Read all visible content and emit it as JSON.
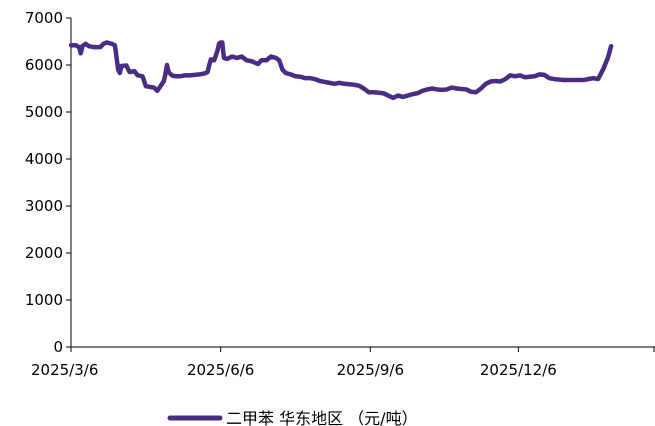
{
  "chart_data": {
    "type": "line",
    "title": "",
    "xlabel": "",
    "ylabel": "",
    "ylim": [
      0,
      7000
    ],
    "yticks": [
      0,
      1000,
      2000,
      3000,
      4000,
      5000,
      6000,
      7000
    ],
    "ytick_labels": [
      "0",
      "1000",
      "2000",
      "3000",
      "4000",
      "5000",
      "6000",
      "7000"
    ],
    "xlim": [
      "2025-03-06",
      "2026-02-28"
    ],
    "xticks": [
      "2025-03-06",
      "2025-06-06",
      "2025-09-06",
      "2025-12-06"
    ],
    "xtick_labels": [
      "2025/3/6",
      "2025/6/6",
      "2025/9/6",
      "2025/12/6"
    ],
    "grid": false,
    "legend_position": "bottom",
    "line_color": "#4b2c83",
    "series": [
      {
        "name": "二甲苯 华东地区 （元/吨）",
        "points": [
          [
            "2025-03-06",
            6420
          ],
          [
            "2025-03-09",
            6420
          ],
          [
            "2025-03-11",
            6380
          ],
          [
            "2025-03-12",
            6250
          ],
          [
            "2025-03-13",
            6400
          ],
          [
            "2025-03-15",
            6450
          ],
          [
            "2025-03-17",
            6400
          ],
          [
            "2025-03-20",
            6380
          ],
          [
            "2025-03-24",
            6380
          ],
          [
            "2025-03-26",
            6450
          ],
          [
            "2025-03-28",
            6480
          ],
          [
            "2025-03-31",
            6450
          ],
          [
            "2025-04-02",
            6420
          ],
          [
            "2025-04-04",
            5900
          ],
          [
            "2025-04-05",
            5830
          ],
          [
            "2025-04-06",
            5980
          ],
          [
            "2025-04-09",
            5990
          ],
          [
            "2025-04-11",
            5850
          ],
          [
            "2025-04-14",
            5870
          ],
          [
            "2025-04-16",
            5780
          ],
          [
            "2025-04-19",
            5760
          ],
          [
            "2025-04-21",
            5550
          ],
          [
            "2025-04-24",
            5530
          ],
          [
            "2025-04-26",
            5520
          ],
          [
            "2025-04-28",
            5450
          ],
          [
            "2025-04-30",
            5550
          ],
          [
            "2025-05-02",
            5650
          ],
          [
            "2025-05-03",
            5800
          ],
          [
            "2025-05-04",
            6000
          ],
          [
            "2025-05-05",
            5850
          ],
          [
            "2025-05-07",
            5780
          ],
          [
            "2025-05-09",
            5760
          ],
          [
            "2025-05-12",
            5760
          ],
          [
            "2025-05-15",
            5780
          ],
          [
            "2025-05-18",
            5780
          ],
          [
            "2025-05-21",
            5790
          ],
          [
            "2025-05-24",
            5800
          ],
          [
            "2025-05-27",
            5820
          ],
          [
            "2025-05-29",
            5850
          ],
          [
            "2025-05-30",
            6000
          ],
          [
            "2025-05-31",
            6120
          ],
          [
            "2025-06-02",
            6100
          ],
          [
            "2025-06-03",
            6200
          ],
          [
            "2025-06-04",
            6300
          ],
          [
            "2025-06-05",
            6450
          ],
          [
            "2025-06-06",
            6480
          ],
          [
            "2025-06-07",
            6480
          ],
          [
            "2025-06-08",
            6150
          ],
          [
            "2025-06-10",
            6130
          ],
          [
            "2025-06-13",
            6180
          ],
          [
            "2025-06-16",
            6150
          ],
          [
            "2025-06-19",
            6180
          ],
          [
            "2025-06-22",
            6100
          ],
          [
            "2025-06-25",
            6080
          ],
          [
            "2025-06-27",
            6050
          ],
          [
            "2025-06-29",
            6020
          ],
          [
            "2025-07-01",
            6100
          ],
          [
            "2025-07-04",
            6100
          ],
          [
            "2025-07-07",
            6180
          ],
          [
            "2025-07-10",
            6150
          ],
          [
            "2025-07-12",
            6100
          ],
          [
            "2025-07-14",
            5900
          ],
          [
            "2025-07-16",
            5830
          ],
          [
            "2025-07-19",
            5800
          ],
          [
            "2025-07-22",
            5760
          ],
          [
            "2025-07-25",
            5750
          ],
          [
            "2025-07-28",
            5720
          ],
          [
            "2025-07-31",
            5720
          ],
          [
            "2025-08-03",
            5700
          ],
          [
            "2025-08-06",
            5660
          ],
          [
            "2025-08-09",
            5640
          ],
          [
            "2025-08-12",
            5620
          ],
          [
            "2025-08-15",
            5600
          ],
          [
            "2025-08-18",
            5620
          ],
          [
            "2025-08-21",
            5600
          ],
          [
            "2025-08-24",
            5590
          ],
          [
            "2025-08-27",
            5580
          ],
          [
            "2025-08-30",
            5560
          ],
          [
            "2025-09-02",
            5500
          ],
          [
            "2025-09-05",
            5420
          ],
          [
            "2025-09-08",
            5420
          ],
          [
            "2025-09-11",
            5410
          ],
          [
            "2025-09-14",
            5400
          ],
          [
            "2025-09-17",
            5350
          ],
          [
            "2025-09-20",
            5300
          ],
          [
            "2025-09-23",
            5350
          ],
          [
            "2025-09-26",
            5320
          ],
          [
            "2025-09-29",
            5350
          ],
          [
            "2025-10-02",
            5380
          ],
          [
            "2025-10-05",
            5400
          ],
          [
            "2025-10-08",
            5450
          ],
          [
            "2025-10-11",
            5480
          ],
          [
            "2025-10-14",
            5500
          ],
          [
            "2025-10-17",
            5480
          ],
          [
            "2025-10-20",
            5470
          ],
          [
            "2025-10-23",
            5480
          ],
          [
            "2025-10-26",
            5520
          ],
          [
            "2025-10-29",
            5500
          ],
          [
            "2025-11-01",
            5490
          ],
          [
            "2025-11-04",
            5480
          ],
          [
            "2025-11-07",
            5430
          ],
          [
            "2025-11-10",
            5420
          ],
          [
            "2025-11-13",
            5500
          ],
          [
            "2025-11-16",
            5600
          ],
          [
            "2025-11-19",
            5650
          ],
          [
            "2025-11-22",
            5660
          ],
          [
            "2025-11-25",
            5650
          ],
          [
            "2025-11-28",
            5700
          ],
          [
            "2025-12-01",
            5780
          ],
          [
            "2025-12-04",
            5760
          ],
          [
            "2025-12-07",
            5780
          ],
          [
            "2025-12-10",
            5740
          ],
          [
            "2025-12-13",
            5750
          ],
          [
            "2025-12-16",
            5760
          ],
          [
            "2025-12-19",
            5800
          ],
          [
            "2025-12-22",
            5790
          ],
          [
            "2025-12-25",
            5720
          ],
          [
            "2025-12-28",
            5700
          ],
          [
            "2025-12-31",
            5690
          ],
          [
            "2026-01-03",
            5680
          ],
          [
            "2026-01-06",
            5680
          ],
          [
            "2026-01-09",
            5680
          ],
          [
            "2026-01-12",
            5680
          ],
          [
            "2026-01-15",
            5680
          ],
          [
            "2026-01-18",
            5700
          ],
          [
            "2026-01-21",
            5720
          ],
          [
            "2026-01-24",
            5700
          ],
          [
            "2026-01-27",
            5900
          ],
          [
            "2026-01-30",
            6150
          ],
          [
            "2026-02-01",
            6400
          ]
        ]
      }
    ]
  }
}
